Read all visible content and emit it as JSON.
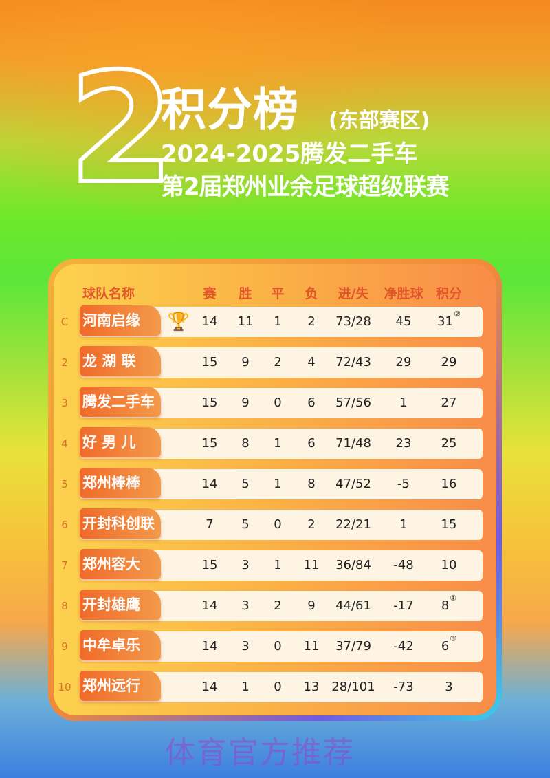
{
  "poster": {
    "number": "2",
    "title": "积分榜",
    "subtitle": "(东部赛区)",
    "line2": "2024-2025腾发二手车",
    "line3": "第2届郑州业余足球超级联赛",
    "watermark": "体育官方推荐"
  },
  "table": {
    "headers": [
      "球队名称",
      "赛",
      "胜",
      "平",
      "负",
      "进/失",
      "净胜球",
      "积分"
    ],
    "rows": [
      {
        "rank": "C",
        "team": "河南启缘",
        "icon": "trophy-icon",
        "played": "14",
        "won": "11",
        "drawn": "1",
        "lost": "2",
        "gf_ga": "73/28",
        "gd": "45",
        "pts": "31",
        "note": "②"
      },
      {
        "rank": "2",
        "team": "龙 湖 联",
        "played": "15",
        "won": "9",
        "drawn": "2",
        "lost": "4",
        "gf_ga": "72/43",
        "gd": "29",
        "pts": "29",
        "note": ""
      },
      {
        "rank": "3",
        "team": "腾发二手车",
        "played": "15",
        "won": "9",
        "drawn": "0",
        "lost": "6",
        "gf_ga": "57/56",
        "gd": "1",
        "pts": "27",
        "note": ""
      },
      {
        "rank": "4",
        "team": "好 男 儿",
        "played": "15",
        "won": "8",
        "drawn": "1",
        "lost": "6",
        "gf_ga": "71/48",
        "gd": "23",
        "pts": "25",
        "note": ""
      },
      {
        "rank": "5",
        "team": "郑州棒棒",
        "played": "14",
        "won": "5",
        "drawn": "1",
        "lost": "8",
        "gf_ga": "47/52",
        "gd": "-5",
        "pts": "16",
        "note": ""
      },
      {
        "rank": "6",
        "team": "开封科创联",
        "played": "7",
        "won": "5",
        "drawn": "0",
        "lost": "2",
        "gf_ga": "22/21",
        "gd": "1",
        "pts": "15",
        "note": ""
      },
      {
        "rank": "7",
        "team": "郑州容大",
        "played": "15",
        "won": "3",
        "drawn": "1",
        "lost": "11",
        "gf_ga": "36/84",
        "gd": "-48",
        "pts": "10",
        "note": ""
      },
      {
        "rank": "8",
        "team": "开封雄鹰",
        "played": "14",
        "won": "3",
        "drawn": "2",
        "lost": "9",
        "gf_ga": "44/61",
        "gd": "-17",
        "pts": "8",
        "note": "①"
      },
      {
        "rank": "9",
        "team": "中牟卓乐",
        "played": "14",
        "won": "3",
        "drawn": "0",
        "lost": "11",
        "gf_ga": "37/79",
        "gd": "-42",
        "pts": "6",
        "note": "③"
      },
      {
        "rank": "10",
        "team": "郑州远行",
        "played": "14",
        "won": "1",
        "drawn": "0",
        "lost": "13",
        "gf_ga": "28/101",
        "gd": "-73",
        "pts": "3",
        "note": ""
      }
    ]
  },
  "colors": {
    "header_text": "#e0562a",
    "name_tag": "#f06a2a",
    "row_bg": "#fdf4e4"
  }
}
